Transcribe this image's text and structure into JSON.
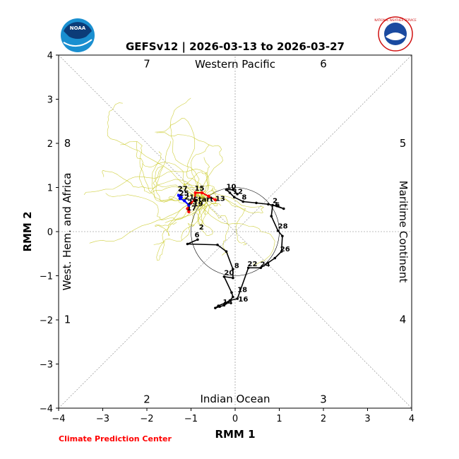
{
  "chart_data": {
    "type": "line",
    "title": "GEFSv12 | 2026-03-13 to 2026-03-27",
    "xlabel": "RMM 1",
    "ylabel": "RMM 2",
    "xlim": [
      -4,
      4
    ],
    "ylim": [
      -4,
      4
    ],
    "xticks": [
      "−4",
      "−3",
      "−2",
      "−1",
      "0",
      "1",
      "2",
      "3",
      "4"
    ],
    "yticks": [
      "−4",
      "−3",
      "−2",
      "−1",
      "0",
      "1",
      "2",
      "3",
      "4"
    ],
    "grid": "dotted diagonals and zero lines",
    "unit_circle_radius": 1,
    "region_labels": {
      "top": "Western Pacific",
      "bottom": "Indian Ocean",
      "left": "West. Hem. and Africa",
      "right": "Maritime Continent"
    },
    "phases": [
      {
        "label": "1",
        "x": -3.8,
        "y": -1.99
      },
      {
        "label": "2",
        "x": -2.0,
        "y": -3.8
      },
      {
        "label": "3",
        "x": 2.0,
        "y": -3.8
      },
      {
        "label": "4",
        "x": 3.8,
        "y": -1.99
      },
      {
        "label": "5",
        "x": 3.8,
        "y": 2.0
      },
      {
        "label": "6",
        "x": 2.0,
        "y": 3.8
      },
      {
        "label": "7",
        "x": -2.0,
        "y": 3.8
      },
      {
        "label": "8",
        "x": -3.8,
        "y": 2.0
      }
    ],
    "observed": {
      "points": [
        [
          -0.85,
          -0.18
        ],
        [
          -1.08,
          -0.28
        ],
        [
          -0.4,
          -0.3
        ],
        [
          -0.2,
          -0.45
        ],
        [
          -0.05,
          -0.85
        ],
        [
          -0.05,
          -1.05
        ],
        [
          -0.25,
          -1.02
        ],
        [
          -0.08,
          -1.38
        ],
        [
          -0.05,
          -1.48
        ],
        [
          -0.15,
          -1.6
        ],
        [
          -0.25,
          -1.67
        ],
        [
          -0.35,
          -1.7
        ],
        [
          -0.45,
          -1.73
        ],
        [
          -0.38,
          -1.68
        ],
        [
          -0.23,
          -1.62
        ],
        [
          -0.12,
          -1.56
        ],
        [
          0.05,
          -1.52
        ],
        [
          0.3,
          -0.82
        ],
        [
          0.58,
          -0.82
        ],
        [
          0.9,
          -0.6
        ],
        [
          1.05,
          -0.45
        ],
        [
          1.07,
          -0.1
        ],
        [
          0.97,
          0.02
        ],
        [
          0.82,
          0.35
        ],
        [
          0.85,
          0.6
        ],
        [
          1.1,
          0.52
        ],
        [
          0.95,
          0.58
        ],
        [
          0.75,
          0.62
        ],
        [
          0.48,
          0.65
        ],
        [
          0.18,
          0.68
        ],
        [
          -0.02,
          0.78
        ],
        [
          -0.12,
          0.88
        ],
        [
          -0.2,
          0.95
        ],
        [
          -0.05,
          0.95
        ],
        [
          0.05,
          0.85
        ]
      ],
      "labels": [
        {
          "text": "2",
          "x": -0.82,
          "y": 0.05
        },
        {
          "text": "6",
          "x": -0.92,
          "y": -0.13
        },
        {
          "text": "20",
          "x": -0.25,
          "y": -0.98
        },
        {
          "text": "18",
          "x": 0.05,
          "y": -1.37
        },
        {
          "text": "16",
          "x": 0.07,
          "y": -1.58
        },
        {
          "text": "14",
          "x": -0.28,
          "y": -1.65
        },
        {
          "text": "8",
          "x": -0.02,
          "y": -0.82
        },
        {
          "text": "22",
          "x": 0.28,
          "y": -0.78
        },
        {
          "text": "24",
          "x": 0.57,
          "y": -0.79
        },
        {
          "text": "26",
          "x": 1.02,
          "y": -0.45
        },
        {
          "text": "28",
          "x": 0.97,
          "y": 0.07
        },
        {
          "text": "2",
          "x": 0.85,
          "y": 0.65
        },
        {
          "text": "6",
          "x": 0.9,
          "y": 0.55
        },
        {
          "text": "8",
          "x": 0.15,
          "y": 0.73
        },
        {
          "text": "10",
          "x": -0.2,
          "y": 0.97
        },
        {
          "text": "12",
          "x": -0.05,
          "y": 0.86
        }
      ]
    },
    "forecast_mean": {
      "color": "#ff0000",
      "points": [
        [
          -0.45,
          0.72
        ],
        [
          -0.6,
          0.8
        ],
        [
          -0.75,
          0.88
        ],
        [
          -0.9,
          0.88
        ],
        [
          -0.92,
          0.72
        ],
        [
          -1.0,
          0.65
        ],
        [
          -1.08,
          0.52
        ],
        [
          -1.05,
          0.45
        ]
      ],
      "labels": [
        {
          "text": "15",
          "x": -0.92,
          "y": 0.93
        },
        {
          "text": "13",
          "x": -0.45,
          "y": 0.7
        },
        {
          "text": "Start",
          "x": -0.95,
          "y": 0.68
        },
        {
          "text": "19",
          "x": -0.95,
          "y": 0.58
        },
        {
          "text": "17",
          "x": -1.1,
          "y": 0.48
        }
      ]
    },
    "forecast_tail": {
      "color": "#0000ff",
      "points": [
        [
          -1.05,
          0.6
        ],
        [
          -1.15,
          0.7
        ],
        [
          -1.25,
          0.75
        ],
        [
          -1.28,
          0.82
        ],
        [
          -1.22,
          0.78
        ]
      ],
      "labels": [
        {
          "text": "27",
          "x": -1.3,
          "y": 0.92
        },
        {
          "text": "25",
          "x": -1.27,
          "y": 0.82
        },
        {
          "text": "21",
          "x": -1.15,
          "y": 0.73
        },
        {
          "text": "23",
          "x": -1.08,
          "y": 0.62
        }
      ]
    },
    "ensemble_color": "#c8c820"
  },
  "logos": {
    "left_text": "NOAA",
    "right_text": "NATIONAL WEATHER SERVICE"
  },
  "credit": "Climate Prediction Center"
}
